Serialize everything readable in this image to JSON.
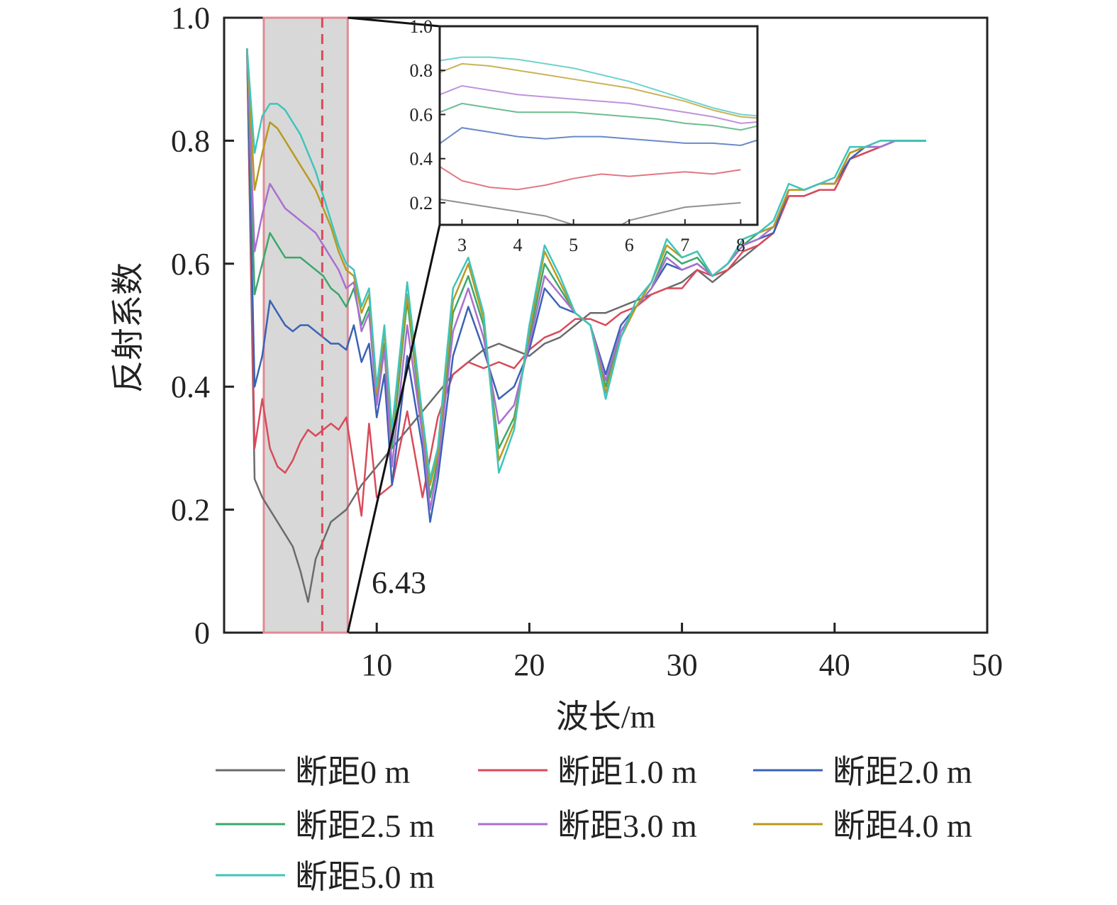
{
  "chart_data": {
    "type": "line",
    "xlabel": "波长/m",
    "ylabel": "反射系数",
    "xlim": [
      0,
      50
    ],
    "ylim": [
      0,
      1.0
    ],
    "xticks": [
      "10",
      "20",
      "30",
      "40",
      "50"
    ],
    "yticks": [
      "0",
      "0.2",
      "0.4",
      "0.6",
      "0.8",
      "1.0"
    ],
    "shaded_region": [
      2.6,
      8.1
    ],
    "marker_line_x": 6.43,
    "annotation": "6.43",
    "inset": {
      "xlim": [
        2.6,
        8.3
      ],
      "ylim": [
        0.1,
        1.0
      ],
      "xticks": [
        "3",
        "4",
        "5",
        "6",
        "7",
        "8"
      ],
      "yticks": [
        "1.0",
        "0.8",
        "0.6",
        "0.4",
        "0.2"
      ]
    },
    "series": [
      {
        "name": "断距0 m",
        "color": "#6b6b6b",
        "x": [
          1.5,
          2.0,
          2.5,
          3.0,
          3.5,
          4.0,
          4.5,
          5.0,
          5.5,
          6.0,
          6.5,
          7.0,
          7.5,
          8.0,
          9.0,
          10.0,
          11.0,
          12.0,
          13.0,
          14.0,
          15.0,
          16.0,
          17.0,
          18.0,
          19.0,
          20.0,
          21.0,
          22.0,
          23.0,
          24.0,
          25.0,
          26.0,
          27.0,
          28.0,
          29.0,
          30.0,
          31.0,
          32.0,
          33.0,
          34.0,
          35.0,
          36.0,
          37.0,
          38.0,
          39.0,
          40.0,
          41.0,
          42.0,
          43.0,
          44.0,
          45.0,
          46.0
        ],
        "y": [
          0.95,
          0.25,
          0.22,
          0.2,
          0.18,
          0.16,
          0.14,
          0.1,
          0.05,
          0.12,
          0.15,
          0.18,
          0.19,
          0.2,
          0.24,
          0.27,
          0.3,
          0.33,
          0.36,
          0.39,
          0.42,
          0.44,
          0.46,
          0.47,
          0.46,
          0.45,
          0.47,
          0.48,
          0.5,
          0.52,
          0.52,
          0.53,
          0.54,
          0.55,
          0.56,
          0.57,
          0.59,
          0.57,
          0.59,
          0.61,
          0.63,
          0.65,
          0.71,
          0.71,
          0.72,
          0.72,
          0.77,
          0.78,
          0.79,
          0.8,
          0.8,
          0.8
        ]
      },
      {
        "name": "断距1.0 m",
        "color": "#d94a5a",
        "x": [
          1.5,
          2.0,
          2.5,
          3.0,
          3.5,
          4.0,
          4.5,
          5.0,
          5.5,
          6.0,
          6.5,
          7.0,
          7.5,
          8.0,
          9.0,
          9.5,
          10.0,
          11.0,
          12.0,
          13.0,
          14.0,
          15.0,
          16.0,
          17.0,
          18.0,
          19.0,
          20.0,
          21.0,
          22.0,
          23.0,
          24.0,
          25.0,
          26.0,
          27.0,
          28.0,
          29.0,
          30.0,
          31.0,
          32.0,
          33.0,
          34.0,
          35.0,
          36.0,
          37.0,
          38.0,
          39.0,
          40.0,
          41.0,
          42.0,
          43.0,
          44.0,
          45.0,
          46.0
        ],
        "y": [
          0.95,
          0.3,
          0.38,
          0.3,
          0.27,
          0.26,
          0.28,
          0.31,
          0.33,
          0.32,
          0.33,
          0.34,
          0.33,
          0.35,
          0.19,
          0.34,
          0.22,
          0.24,
          0.36,
          0.22,
          0.35,
          0.42,
          0.44,
          0.43,
          0.44,
          0.43,
          0.46,
          0.48,
          0.49,
          0.51,
          0.51,
          0.5,
          0.52,
          0.53,
          0.55,
          0.56,
          0.56,
          0.59,
          0.58,
          0.59,
          0.62,
          0.63,
          0.65,
          0.71,
          0.71,
          0.72,
          0.72,
          0.77,
          0.78,
          0.79,
          0.8,
          0.8,
          0.8
        ]
      },
      {
        "name": "断距2.0 m",
        "color": "#3a62b5",
        "x": [
          1.5,
          2.0,
          2.5,
          3.0,
          3.5,
          4.0,
          4.5,
          5.0,
          5.5,
          6.0,
          6.5,
          7.0,
          7.5,
          8.0,
          8.5,
          9.0,
          9.5,
          10.0,
          10.5,
          11.0,
          12.0,
          13.0,
          13.5,
          14.0,
          15.0,
          16.0,
          17.0,
          18.0,
          19.0,
          20.0,
          21.0,
          22.0,
          23.0,
          24.0,
          25.0,
          26.0,
          27.0,
          28.0,
          29.0,
          30.0,
          31.0,
          32.0,
          33.0,
          34.0,
          35.0,
          36.0,
          37.0,
          38.0,
          39.0,
          40.0,
          41.0,
          42.0,
          43.0,
          44.0,
          45.0,
          46.0
        ],
        "y": [
          0.95,
          0.4,
          0.45,
          0.54,
          0.52,
          0.5,
          0.49,
          0.5,
          0.5,
          0.49,
          0.48,
          0.47,
          0.47,
          0.46,
          0.5,
          0.44,
          0.47,
          0.35,
          0.42,
          0.24,
          0.45,
          0.3,
          0.18,
          0.25,
          0.45,
          0.53,
          0.46,
          0.38,
          0.4,
          0.46,
          0.56,
          0.53,
          0.52,
          0.5,
          0.42,
          0.5,
          0.53,
          0.56,
          0.6,
          0.59,
          0.6,
          0.58,
          0.6,
          0.63,
          0.64,
          0.65,
          0.72,
          0.72,
          0.73,
          0.73,
          0.77,
          0.79,
          0.79,
          0.8,
          0.8,
          0.8
        ]
      },
      {
        "name": "断距2.5 m",
        "color": "#3aa86a",
        "x": [
          1.5,
          2.0,
          2.5,
          3.0,
          3.5,
          4.0,
          4.5,
          5.0,
          5.5,
          6.0,
          6.5,
          7.0,
          7.5,
          8.0,
          8.5,
          9.0,
          9.5,
          10.0,
          10.5,
          11.0,
          12.0,
          13.0,
          13.5,
          14.0,
          15.0,
          16.0,
          17.0,
          18.0,
          19.0,
          20.0,
          21.0,
          22.0,
          23.0,
          24.0,
          25.0,
          26.0,
          27.0,
          28.0,
          29.0,
          30.0,
          31.0,
          32.0,
          33.0,
          34.0,
          35.0,
          36.0,
          37.0,
          38.0,
          39.0,
          40.0,
          41.0,
          42.0,
          43.0,
          44.0,
          45.0,
          46.0
        ],
        "y": [
          0.95,
          0.55,
          0.6,
          0.65,
          0.63,
          0.61,
          0.61,
          0.61,
          0.6,
          0.59,
          0.58,
          0.56,
          0.55,
          0.53,
          0.56,
          0.5,
          0.53,
          0.38,
          0.47,
          0.3,
          0.54,
          0.33,
          0.22,
          0.28,
          0.52,
          0.58,
          0.5,
          0.3,
          0.35,
          0.48,
          0.6,
          0.56,
          0.52,
          0.5,
          0.4,
          0.49,
          0.53,
          0.56,
          0.62,
          0.6,
          0.61,
          0.58,
          0.6,
          0.63,
          0.65,
          0.66,
          0.72,
          0.72,
          0.73,
          0.73,
          0.78,
          0.79,
          0.79,
          0.8,
          0.8,
          0.8
        ]
      },
      {
        "name": "断距3.0 m",
        "color": "#a96fd0",
        "x": [
          1.5,
          2.0,
          2.5,
          3.0,
          3.5,
          4.0,
          4.5,
          5.0,
          5.5,
          6.0,
          6.5,
          7.0,
          7.5,
          8.0,
          8.5,
          9.0,
          9.5,
          10.0,
          10.5,
          11.0,
          12.0,
          13.0,
          13.5,
          14.0,
          15.0,
          16.0,
          17.0,
          18.0,
          19.0,
          20.0,
          21.0,
          22.0,
          23.0,
          24.0,
          25.0,
          26.0,
          27.0,
          28.0,
          29.0,
          30.0,
          31.0,
          32.0,
          33.0,
          34.0,
          35.0,
          36.0,
          37.0,
          38.0,
          39.0,
          40.0,
          41.0,
          42.0,
          43.0,
          44.0,
          45.0,
          46.0
        ],
        "y": [
          0.95,
          0.62,
          0.68,
          0.73,
          0.71,
          0.69,
          0.68,
          0.67,
          0.66,
          0.65,
          0.63,
          0.61,
          0.59,
          0.56,
          0.57,
          0.49,
          0.52,
          0.37,
          0.46,
          0.27,
          0.5,
          0.32,
          0.2,
          0.27,
          0.49,
          0.56,
          0.48,
          0.34,
          0.37,
          0.47,
          0.58,
          0.55,
          0.52,
          0.5,
          0.41,
          0.49,
          0.53,
          0.56,
          0.61,
          0.59,
          0.6,
          0.58,
          0.6,
          0.63,
          0.64,
          0.66,
          0.72,
          0.72,
          0.73,
          0.73,
          0.78,
          0.79,
          0.79,
          0.8,
          0.8,
          0.8
        ]
      },
      {
        "name": "断距4.0 m",
        "color": "#b89a1e",
        "x": [
          1.5,
          2.0,
          2.5,
          3.0,
          3.5,
          4.0,
          4.5,
          5.0,
          5.5,
          6.0,
          6.5,
          7.0,
          7.5,
          8.0,
          8.5,
          9.0,
          9.5,
          10.0,
          10.5,
          11.0,
          12.0,
          13.0,
          13.5,
          14.0,
          15.0,
          16.0,
          17.0,
          18.0,
          19.0,
          20.0,
          21.0,
          22.0,
          23.0,
          24.0,
          25.0,
          26.0,
          27.0,
          28.0,
          29.0,
          30.0,
          31.0,
          32.0,
          33.0,
          34.0,
          35.0,
          36.0,
          37.0,
          38.0,
          39.0,
          40.0,
          41.0,
          42.0,
          43.0,
          44.0,
          45.0,
          46.0
        ],
        "y": [
          0.95,
          0.72,
          0.78,
          0.83,
          0.82,
          0.8,
          0.78,
          0.76,
          0.74,
          0.72,
          0.69,
          0.66,
          0.62,
          0.59,
          0.58,
          0.52,
          0.55,
          0.39,
          0.49,
          0.32,
          0.55,
          0.34,
          0.24,
          0.29,
          0.54,
          0.6,
          0.51,
          0.28,
          0.34,
          0.49,
          0.62,
          0.57,
          0.52,
          0.5,
          0.39,
          0.48,
          0.53,
          0.57,
          0.63,
          0.61,
          0.62,
          0.58,
          0.6,
          0.64,
          0.65,
          0.66,
          0.72,
          0.72,
          0.73,
          0.73,
          0.78,
          0.79,
          0.8,
          0.8,
          0.8,
          0.8
        ]
      },
      {
        "name": "断距5.0 m",
        "color": "#3fc4bc",
        "x": [
          1.5,
          2.0,
          2.5,
          3.0,
          3.5,
          4.0,
          4.5,
          5.0,
          5.5,
          6.0,
          6.5,
          7.0,
          7.5,
          8.0,
          8.5,
          9.0,
          9.5,
          10.0,
          10.5,
          11.0,
          12.0,
          13.0,
          13.5,
          14.0,
          15.0,
          16.0,
          17.0,
          18.0,
          19.0,
          20.0,
          21.0,
          22.0,
          23.0,
          24.0,
          25.0,
          26.0,
          27.0,
          28.0,
          29.0,
          30.0,
          31.0,
          32.0,
          33.0,
          34.0,
          35.0,
          36.0,
          37.0,
          38.0,
          39.0,
          40.0,
          41.0,
          42.0,
          43.0,
          44.0,
          45.0,
          46.0
        ],
        "y": [
          0.95,
          0.78,
          0.84,
          0.86,
          0.86,
          0.85,
          0.83,
          0.81,
          0.78,
          0.75,
          0.71,
          0.67,
          0.63,
          0.6,
          0.59,
          0.53,
          0.56,
          0.4,
          0.5,
          0.33,
          0.57,
          0.35,
          0.25,
          0.3,
          0.56,
          0.61,
          0.52,
          0.26,
          0.33,
          0.5,
          0.63,
          0.58,
          0.52,
          0.5,
          0.38,
          0.48,
          0.54,
          0.57,
          0.64,
          0.61,
          0.62,
          0.58,
          0.6,
          0.64,
          0.65,
          0.67,
          0.73,
          0.72,
          0.73,
          0.74,
          0.79,
          0.79,
          0.8,
          0.8,
          0.8,
          0.8
        ]
      }
    ]
  }
}
